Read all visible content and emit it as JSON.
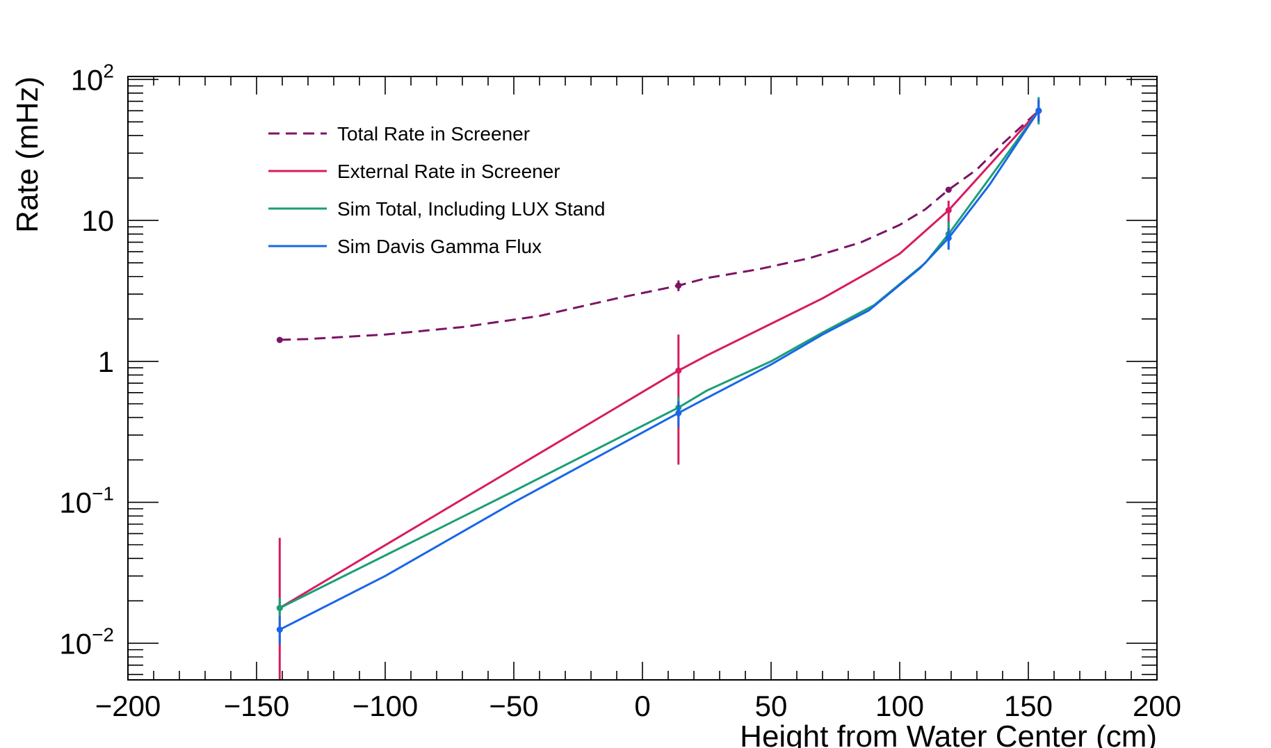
{
  "chart_data": {
    "type": "line",
    "xlabel": "Height from Water Center (cm)",
    "ylabel": "Rate (mHz)",
    "xlim": [
      -200,
      200
    ],
    "ylim": [
      0.0055,
      105
    ],
    "y_scale": "log",
    "x_ticks": [
      -200,
      -150,
      -100,
      -50,
      0,
      50,
      100,
      150,
      200
    ],
    "x_tick_labels": [
      "−200",
      "−150",
      "−100",
      "−50",
      "0",
      "50",
      "100",
      "150",
      "200"
    ],
    "y_ticks": [
      {
        "value": 0.01,
        "base": "10",
        "exp": "−2"
      },
      {
        "value": 0.1,
        "base": "10",
        "exp": "−1"
      },
      {
        "value": 1,
        "base": "1",
        "exp": ""
      },
      {
        "value": 10,
        "base": "10",
        "exp": ""
      },
      {
        "value": 100,
        "base": "10",
        "exp": "2"
      }
    ],
    "legend_position": "top-left",
    "series": [
      {
        "name": "Total Rate in Screener",
        "color": "#7a1466",
        "dashed": true,
        "curve": [
          [
            -141,
            1.42
          ],
          [
            -130,
            1.44
          ],
          [
            -100,
            1.55
          ],
          [
            -70,
            1.75
          ],
          [
            -40,
            2.1
          ],
          [
            -10,
            2.8
          ],
          [
            14,
            3.45
          ],
          [
            25,
            3.9
          ],
          [
            45,
            4.5
          ],
          [
            65,
            5.4
          ],
          [
            85,
            7.0
          ],
          [
            100,
            9.3
          ],
          [
            110,
            12.0
          ],
          [
            119,
            16.5
          ],
          [
            130,
            23
          ],
          [
            140,
            35
          ],
          [
            154,
            60
          ]
        ],
        "points": [
          {
            "x": -141,
            "y": 1.42,
            "lo": 1.4,
            "hi": 1.45
          },
          {
            "x": 14,
            "y": 3.45,
            "lo": 3.15,
            "hi": 3.75
          },
          {
            "x": 119,
            "y": 16.5,
            "lo": 16.0,
            "hi": 17.0
          },
          {
            "x": 154,
            "y": 60,
            "lo": 57,
            "hi": 63
          }
        ]
      },
      {
        "name": "External Rate in Screener",
        "color": "#d81b60",
        "dashed": false,
        "curve": [
          [
            -141,
            0.0178
          ],
          [
            14,
            0.86
          ],
          [
            25,
            1.1
          ],
          [
            70,
            2.8
          ],
          [
            90,
            4.5
          ],
          [
            100,
            5.8
          ],
          [
            119,
            11.8
          ],
          [
            154,
            60
          ]
        ],
        "points": [
          {
            "x": -141,
            "y": 0.0178,
            "lo": 0.0045,
            "hi": 0.056
          },
          {
            "x": 14,
            "y": 0.86,
            "lo": 0.185,
            "hi": 1.55
          },
          {
            "x": 119,
            "y": 11.8,
            "lo": 8.5,
            "hi": 13.8
          },
          {
            "x": 154,
            "y": 60,
            "lo": 50,
            "hi": 72
          }
        ]
      },
      {
        "name": "Sim Total, Including LUX Stand",
        "color": "#1b9e77",
        "dashed": false,
        "curve": [
          [
            -141,
            0.0178
          ],
          [
            -100,
            0.042
          ],
          [
            -50,
            0.12
          ],
          [
            14,
            0.47
          ],
          [
            25,
            0.62
          ],
          [
            50,
            1.0
          ],
          [
            70,
            1.6
          ],
          [
            90,
            2.5
          ],
          [
            110,
            5.0
          ],
          [
            119,
            8.0
          ],
          [
            135,
            20
          ],
          [
            154,
            60
          ]
        ],
        "points": [
          {
            "x": -141,
            "y": 0.0178,
            "lo": 0.0148,
            "hi": 0.021
          },
          {
            "x": 14,
            "y": 0.47,
            "lo": 0.4,
            "hi": 0.56
          },
          {
            "x": 119,
            "y": 8.0,
            "lo": 6.2,
            "hi": 9.8
          },
          {
            "x": 154,
            "y": 60,
            "lo": 48,
            "hi": 75
          }
        ]
      },
      {
        "name": "Sim Davis Gamma Flux",
        "color": "#1a66e8",
        "dashed": false,
        "curve": [
          [
            -141,
            0.0125
          ],
          [
            -100,
            0.03
          ],
          [
            -50,
            0.1
          ],
          [
            14,
            0.43
          ],
          [
            25,
            0.55
          ],
          [
            50,
            0.95
          ],
          [
            70,
            1.55
          ],
          [
            88,
            2.3
          ],
          [
            108,
            4.6
          ],
          [
            119,
            7.5
          ],
          [
            135,
            18
          ],
          [
            154,
            60
          ]
        ],
        "points": [
          {
            "x": -141,
            "y": 0.0125,
            "lo": 0.0098,
            "hi": 0.0155
          },
          {
            "x": 14,
            "y": 0.43,
            "lo": 0.34,
            "hi": 0.52
          },
          {
            "x": 119,
            "y": 7.5,
            "lo": 6.2,
            "hi": 8.8
          },
          {
            "x": 154,
            "y": 60,
            "lo": 50,
            "hi": 72
          }
        ]
      }
    ]
  }
}
